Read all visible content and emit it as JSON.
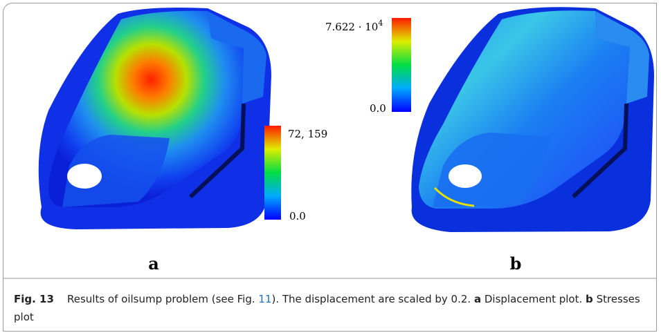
{
  "panel_a": {
    "colorbar_max": "72, 159",
    "colorbar_min": "0.0",
    "label": "a"
  },
  "panel_b": {
    "colorbar_max_base": "7.622 · 10",
    "colorbar_max_exponent": "4",
    "colorbar_min": "0.0",
    "label": "b"
  },
  "caption": {
    "figure": "Fig. 13",
    "text_before_link": "Results of oilsump problem (see Fig.",
    "link": "11",
    "text_after_link": "). The displacement are scaled by 0.2.",
    "part_a_label": "a",
    "part_a_text": "Displacement plot.",
    "part_b_label": "b",
    "part_b_text": "Stresses plot"
  }
}
